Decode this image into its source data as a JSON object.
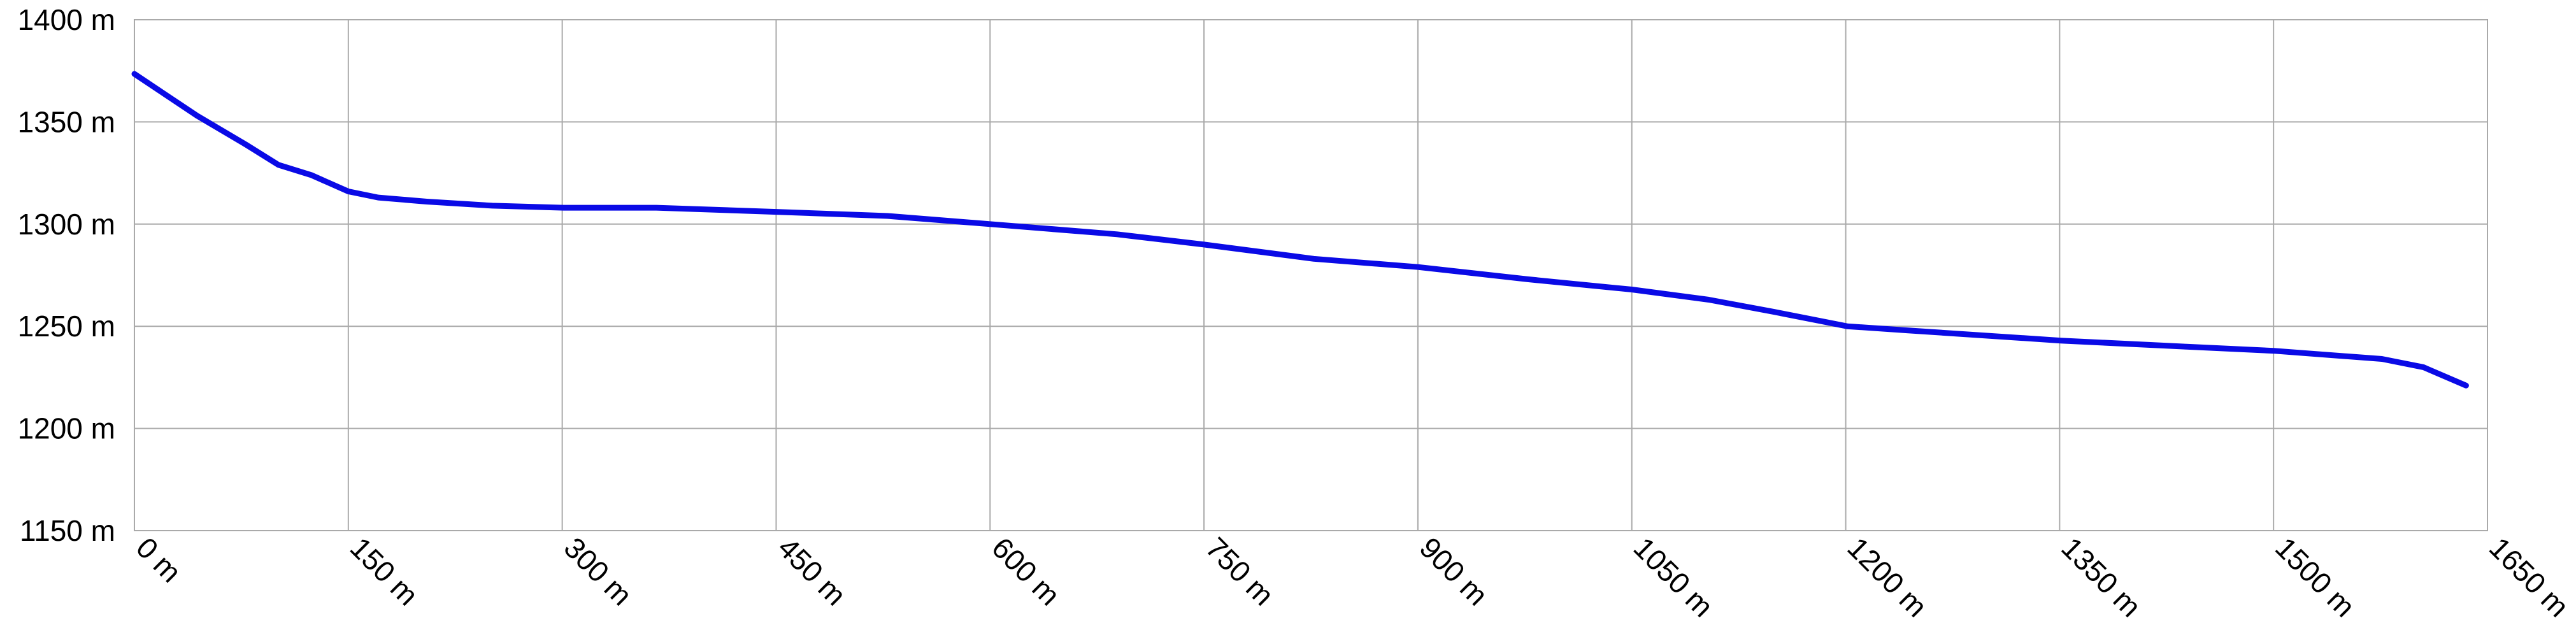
{
  "chart_data": {
    "type": "line",
    "x": [
      0,
      44,
      78,
      101,
      124,
      150,
      171,
      205,
      251,
      301,
      366,
      450,
      528,
      600,
      689,
      750,
      827,
      900,
      977,
      1050,
      1104,
      1150,
      1201,
      1243,
      1351,
      1439,
      1500,
      1576,
      1605,
      1635
    ],
    "values": [
      1373.5,
      1353,
      1339,
      1329,
      1324,
      1316,
      1313,
      1311,
      1309,
      1308,
      1308,
      1306,
      1304,
      1300,
      1295,
      1290,
      1283,
      1279,
      1273,
      1268,
      1263,
      1257,
      1250,
      1248,
      1243,
      1240,
      1238,
      1234,
      1230,
      1221
    ],
    "color": "#0a0ae6",
    "xlim": [
      0,
      1650
    ],
    "ylim": [
      1150,
      1400
    ],
    "xticks": [
      {
        "value": 0,
        "label": "0 m"
      },
      {
        "value": 150,
        "label": "150 m"
      },
      {
        "value": 300,
        "label": "300 m"
      },
      {
        "value": 450,
        "label": "450 m"
      },
      {
        "value": 600,
        "label": "600 m"
      },
      {
        "value": 750,
        "label": "750 m"
      },
      {
        "value": 900,
        "label": "900 m"
      },
      {
        "value": 1050,
        "label": "1050 m"
      },
      {
        "value": 1200,
        "label": "1200 m"
      },
      {
        "value": 1350,
        "label": "1350 m"
      },
      {
        "value": 1500,
        "label": "1500 m"
      },
      {
        "value": 1650,
        "label": "1650 m"
      }
    ],
    "yticks": [
      {
        "value": 1150,
        "label": "1150 m"
      },
      {
        "value": 1200,
        "label": "1200 m"
      },
      {
        "value": 1250,
        "label": "1250 m"
      },
      {
        "value": 1300,
        "label": "1300 m"
      },
      {
        "value": 1350,
        "label": "1350 m"
      },
      {
        "value": 1400,
        "label": "1400 m"
      }
    ],
    "grid": true
  }
}
